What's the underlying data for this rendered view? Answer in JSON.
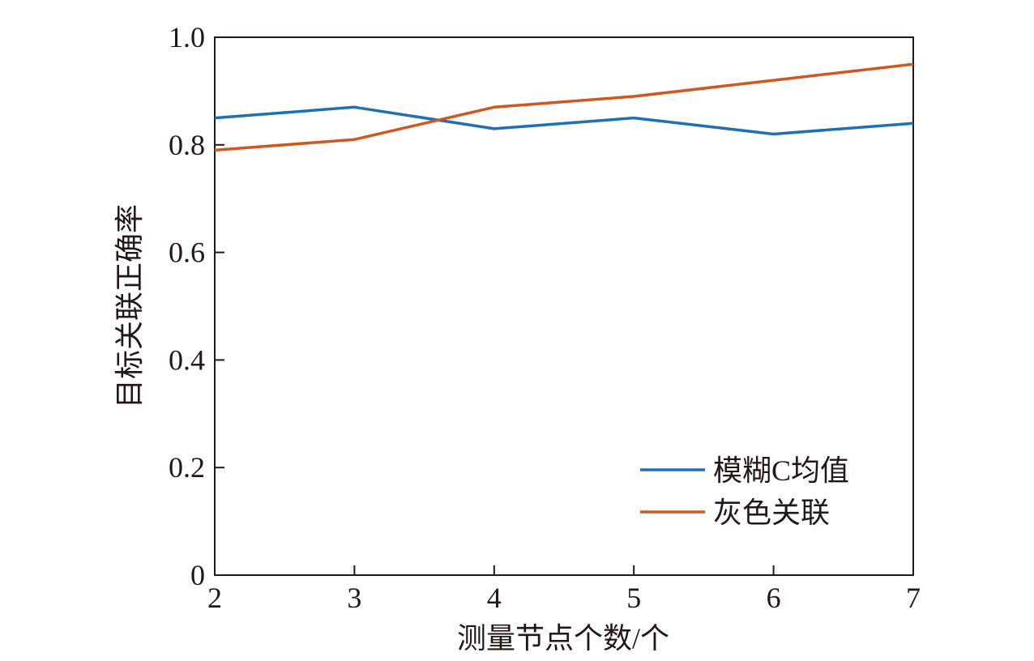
{
  "chart_data": {
    "type": "line",
    "title": "",
    "xlabel": "测量节点个数/个",
    "ylabel": "目标关联正确率",
    "x": [
      2,
      3,
      4,
      5,
      6,
      7
    ],
    "xlim": [
      2,
      7
    ],
    "ylim": [
      0,
      1.0
    ],
    "xticks": [
      "2",
      "3",
      "4",
      "5",
      "6",
      "7"
    ],
    "yticks": [
      "0",
      "0.2",
      "0.4",
      "0.6",
      "0.8",
      "1.0"
    ],
    "grid": false,
    "legend_position": "bottom-right",
    "series": [
      {
        "name": "模糊C均值",
        "color": "#1f6fb4",
        "values": [
          0.85,
          0.87,
          0.83,
          0.85,
          0.82,
          0.84
        ]
      },
      {
        "name": "灰色关联",
        "color": "#d0571f",
        "values": [
          0.79,
          0.81,
          0.87,
          0.89,
          0.92,
          0.95
        ]
      }
    ]
  }
}
